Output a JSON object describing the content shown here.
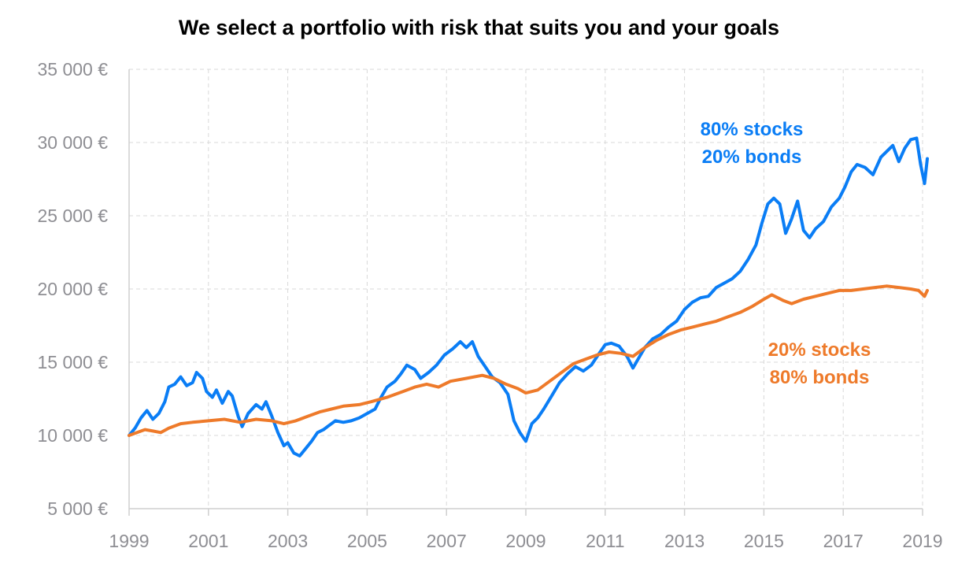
{
  "chart_data": {
    "type": "line",
    "title": "We select a portfolio with risk that suits you and your goals",
    "xlabel": "",
    "ylabel": "",
    "xlim": [
      1999,
      2019
    ],
    "ylim": [
      5000,
      35000
    ],
    "y_ticks": [
      5000,
      10000,
      15000,
      20000,
      25000,
      30000,
      35000
    ],
    "y_tick_labels": [
      "5 000 €",
      "10 000 €",
      "15 000 €",
      "20 000 €",
      "25 000 €",
      "30 000 €",
      "35 000 €"
    ],
    "x_ticks": [
      1999,
      2001,
      2003,
      2005,
      2007,
      2009,
      2011,
      2013,
      2015,
      2017,
      2019
    ],
    "x_tick_labels": [
      "1999",
      "2001",
      "2003",
      "2005",
      "2007",
      "2009",
      "2011",
      "2013",
      "2015",
      "2017",
      "2019"
    ],
    "grid": true,
    "series": [
      {
        "annotation": [
          "80% stocks",
          "20% bonds"
        ],
        "color": "#0a7df5",
        "points": [
          [
            1999.0,
            10000
          ],
          [
            1999.15,
            10500
          ],
          [
            1999.3,
            11200
          ],
          [
            1999.45,
            11700
          ],
          [
            1999.6,
            11100
          ],
          [
            1999.75,
            11500
          ],
          [
            1999.9,
            12300
          ],
          [
            2000.0,
            13300
          ],
          [
            2000.15,
            13500
          ],
          [
            2000.3,
            14000
          ],
          [
            2000.45,
            13400
          ],
          [
            2000.6,
            13600
          ],
          [
            2000.7,
            14300
          ],
          [
            2000.85,
            13900
          ],
          [
            2000.95,
            13000
          ],
          [
            2001.1,
            12600
          ],
          [
            2001.2,
            13100
          ],
          [
            2001.35,
            12200
          ],
          [
            2001.5,
            13000
          ],
          [
            2001.6,
            12700
          ],
          [
            2001.75,
            11300
          ],
          [
            2001.85,
            10600
          ],
          [
            2002.0,
            11500
          ],
          [
            2002.2,
            12100
          ],
          [
            2002.35,
            11800
          ],
          [
            2002.45,
            12300
          ],
          [
            2002.6,
            11300
          ],
          [
            2002.75,
            10200
          ],
          [
            2002.9,
            9300
          ],
          [
            2003.0,
            9500
          ],
          [
            2003.15,
            8800
          ],
          [
            2003.3,
            8600
          ],
          [
            2003.45,
            9100
          ],
          [
            2003.6,
            9600
          ],
          [
            2003.75,
            10200
          ],
          [
            2003.9,
            10400
          ],
          [
            2004.0,
            10600
          ],
          [
            2004.2,
            11000
          ],
          [
            2004.4,
            10900
          ],
          [
            2004.6,
            11000
          ],
          [
            2004.8,
            11200
          ],
          [
            2005.0,
            11500
          ],
          [
            2005.2,
            11800
          ],
          [
            2005.35,
            12600
          ],
          [
            2005.5,
            13300
          ],
          [
            2005.7,
            13700
          ],
          [
            2005.85,
            14200
          ],
          [
            2006.0,
            14800
          ],
          [
            2006.2,
            14500
          ],
          [
            2006.35,
            13900
          ],
          [
            2006.55,
            14300
          ],
          [
            2006.75,
            14800
          ],
          [
            2006.95,
            15500
          ],
          [
            2007.15,
            15900
          ],
          [
            2007.35,
            16400
          ],
          [
            2007.5,
            16000
          ],
          [
            2007.65,
            16400
          ],
          [
            2007.8,
            15400
          ],
          [
            2007.95,
            14800
          ],
          [
            2008.15,
            14000
          ],
          [
            2008.35,
            13600
          ],
          [
            2008.55,
            12800
          ],
          [
            2008.7,
            11000
          ],
          [
            2008.85,
            10200
          ],
          [
            2009.0,
            9600
          ],
          [
            2009.15,
            10800
          ],
          [
            2009.3,
            11200
          ],
          [
            2009.45,
            11800
          ],
          [
            2009.65,
            12700
          ],
          [
            2009.85,
            13600
          ],
          [
            2010.05,
            14200
          ],
          [
            2010.25,
            14700
          ],
          [
            2010.45,
            14400
          ],
          [
            2010.65,
            14800
          ],
          [
            2010.85,
            15600
          ],
          [
            2011.0,
            16200
          ],
          [
            2011.15,
            16300
          ],
          [
            2011.35,
            16100
          ],
          [
            2011.55,
            15400
          ],
          [
            2011.7,
            14600
          ],
          [
            2011.85,
            15300
          ],
          [
            2012.0,
            16000
          ],
          [
            2012.2,
            16600
          ],
          [
            2012.4,
            16900
          ],
          [
            2012.6,
            17400
          ],
          [
            2012.8,
            17800
          ],
          [
            2013.0,
            18600
          ],
          [
            2013.2,
            19100
          ],
          [
            2013.4,
            19400
          ],
          [
            2013.6,
            19500
          ],
          [
            2013.8,
            20100
          ],
          [
            2014.0,
            20400
          ],
          [
            2014.2,
            20700
          ],
          [
            2014.4,
            21200
          ],
          [
            2014.6,
            22000
          ],
          [
            2014.8,
            23000
          ],
          [
            2014.95,
            24500
          ],
          [
            2015.1,
            25800
          ],
          [
            2015.25,
            26200
          ],
          [
            2015.4,
            25800
          ],
          [
            2015.55,
            23800
          ],
          [
            2015.7,
            24800
          ],
          [
            2015.85,
            26000
          ],
          [
            2016.0,
            24000
          ],
          [
            2016.15,
            23500
          ],
          [
            2016.3,
            24100
          ],
          [
            2016.5,
            24600
          ],
          [
            2016.7,
            25600
          ],
          [
            2016.9,
            26200
          ],
          [
            2017.05,
            27000
          ],
          [
            2017.2,
            28000
          ],
          [
            2017.35,
            28500
          ],
          [
            2017.55,
            28300
          ],
          [
            2017.75,
            27800
          ],
          [
            2017.95,
            29000
          ],
          [
            2018.1,
            29400
          ],
          [
            2018.25,
            29800
          ],
          [
            2018.4,
            28700
          ],
          [
            2018.55,
            29600
          ],
          [
            2018.7,
            30200
          ],
          [
            2018.85,
            30300
          ],
          [
            2018.95,
            28500
          ],
          [
            2019.05,
            27200
          ],
          [
            2019.12,
            28900
          ]
        ]
      },
      {
        "annotation": [
          "20% stocks",
          "80% bonds"
        ],
        "color": "#ee7a2a",
        "points": [
          [
            1999.0,
            10000
          ],
          [
            1999.2,
            10200
          ],
          [
            1999.4,
            10400
          ],
          [
            1999.6,
            10300
          ],
          [
            1999.8,
            10200
          ],
          [
            2000.0,
            10500
          ],
          [
            2000.3,
            10800
          ],
          [
            2000.6,
            10900
          ],
          [
            2001.0,
            11000
          ],
          [
            2001.4,
            11100
          ],
          [
            2001.8,
            10900
          ],
          [
            2002.2,
            11100
          ],
          [
            2002.6,
            11000
          ],
          [
            2002.9,
            10800
          ],
          [
            2003.2,
            11000
          ],
          [
            2003.5,
            11300
          ],
          [
            2003.8,
            11600
          ],
          [
            2004.1,
            11800
          ],
          [
            2004.4,
            12000
          ],
          [
            2004.8,
            12100
          ],
          [
            2005.1,
            12300
          ],
          [
            2005.5,
            12600
          ],
          [
            2005.9,
            13000
          ],
          [
            2006.2,
            13300
          ],
          [
            2006.5,
            13500
          ],
          [
            2006.8,
            13300
          ],
          [
            2007.1,
            13700
          ],
          [
            2007.5,
            13900
          ],
          [
            2007.9,
            14100
          ],
          [
            2008.2,
            13900
          ],
          [
            2008.5,
            13500
          ],
          [
            2008.8,
            13200
          ],
          [
            2009.0,
            12900
          ],
          [
            2009.3,
            13100
          ],
          [
            2009.6,
            13700
          ],
          [
            2009.9,
            14300
          ],
          [
            2010.2,
            14900
          ],
          [
            2010.5,
            15200
          ],
          [
            2010.8,
            15500
          ],
          [
            2011.1,
            15700
          ],
          [
            2011.4,
            15600
          ],
          [
            2011.7,
            15400
          ],
          [
            2012.0,
            16000
          ],
          [
            2012.3,
            16500
          ],
          [
            2012.6,
            16900
          ],
          [
            2012.9,
            17200
          ],
          [
            2013.2,
            17400
          ],
          [
            2013.5,
            17600
          ],
          [
            2013.8,
            17800
          ],
          [
            2014.1,
            18100
          ],
          [
            2014.4,
            18400
          ],
          [
            2014.7,
            18800
          ],
          [
            2015.0,
            19300
          ],
          [
            2015.2,
            19600
          ],
          [
            2015.5,
            19200
          ],
          [
            2015.7,
            19000
          ],
          [
            2016.0,
            19300
          ],
          [
            2016.3,
            19500
          ],
          [
            2016.6,
            19700
          ],
          [
            2016.9,
            19900
          ],
          [
            2017.2,
            19900
          ],
          [
            2017.5,
            20000
          ],
          [
            2017.8,
            20100
          ],
          [
            2018.1,
            20200
          ],
          [
            2018.4,
            20100
          ],
          [
            2018.7,
            20000
          ],
          [
            2018.9,
            19900
          ],
          [
            2019.05,
            19500
          ],
          [
            2019.12,
            19900
          ]
        ]
      }
    ]
  }
}
